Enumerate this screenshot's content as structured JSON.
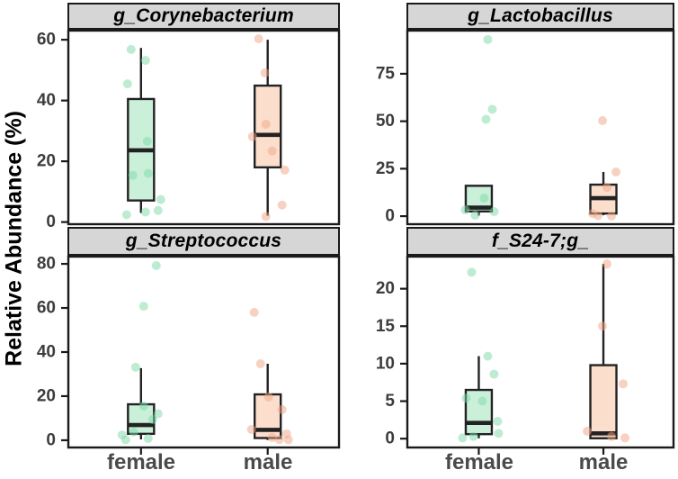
{
  "figure": {
    "ylabel": "Relative Abundance (%)",
    "x_categories": [
      "female",
      "male"
    ],
    "colors": {
      "female_fill": "#cbf0da",
      "female_point": "#7ed9a7",
      "male_fill": "#fcdecd",
      "male_point": "#f0a585",
      "box_stroke": "#222222",
      "panel_border": "#1a1a1a",
      "strip_bg": "#d6d6d6",
      "tick_label": "#3d3d3d",
      "axis_label": "#4a4a4a"
    }
  },
  "chart_data": [
    {
      "type": "boxplot",
      "title": "g_Corynebacterium",
      "categories": [
        "female",
        "male"
      ],
      "yticks": [
        0,
        20,
        40,
        60
      ],
      "ylim": [
        -1,
        63.3
      ],
      "grid": false,
      "series": [
        {
          "name": "female",
          "whisker_low": 3,
          "q1": 7.1,
          "median": 23.6,
          "q3": 40.5,
          "whisker_high": 57.3,
          "points": [
            [
              56.8,
              -11
            ],
            [
              53.2,
              5
            ],
            [
              45.5,
              -15
            ],
            [
              26.6,
              7
            ],
            [
              16,
              8
            ],
            [
              15.4,
              -9
            ],
            [
              7.4,
              22
            ],
            [
              3.8,
              19
            ],
            [
              3.3,
              5
            ],
            [
              2.4,
              -16
            ]
          ]
        },
        {
          "name": "male",
          "whisker_low": 2.1,
          "q1": 18,
          "median": 28.7,
          "q3": 44.9,
          "whisker_high": 60,
          "points": [
            [
              60.3,
              -10
            ],
            [
              49.1,
              -3
            ],
            [
              32.2,
              -2
            ],
            [
              28.1,
              -17
            ],
            [
              23.4,
              5
            ],
            [
              17.1,
              19
            ],
            [
              5.6,
              16
            ],
            [
              1.8,
              -2
            ]
          ]
        }
      ]
    },
    {
      "type": "boxplot",
      "title": "g_Lactobacillus",
      "categories": [
        "female",
        "male"
      ],
      "yticks": [
        0,
        25,
        50,
        75
      ],
      "ylim": [
        -4.7,
        98.2
      ],
      "grid": false,
      "series": [
        {
          "name": "female",
          "whisker_low": 0.3,
          "q1": 2.5,
          "median": 4.5,
          "q3": 16,
          "whisker_high": 16,
          "points": [
            [
              93,
              10
            ],
            [
              56.3,
              15
            ],
            [
              51,
              8
            ],
            [
              9.5,
              6
            ],
            [
              3.3,
              -15
            ],
            [
              2.4,
              17
            ],
            [
              0.5,
              -4
            ]
          ]
        },
        {
          "name": "male",
          "whisker_low": 0.5,
          "q1": 1.4,
          "median": 9.5,
          "q3": 16.6,
          "whisker_high": 23.3,
          "points": [
            [
              50.3,
              -1
            ],
            [
              23.3,
              14
            ],
            [
              15.2,
              4
            ],
            [
              1.4,
              -12
            ],
            [
              0.3,
              -6
            ],
            [
              0.1,
              9
            ]
          ]
        }
      ]
    },
    {
      "type": "boxplot",
      "title": "g_Streptococcus",
      "categories": [
        "female",
        "male"
      ],
      "yticks": [
        0,
        20,
        40,
        60,
        80
      ],
      "ylim": [
        -3.7,
        83.7
      ],
      "grid": false,
      "series": [
        {
          "name": "female",
          "whisker_low": 0.4,
          "q1": 2.9,
          "median": 6.9,
          "q3": 16.3,
          "whisker_high": 32.7,
          "points": [
            [
              79.2,
              17
            ],
            [
              60.8,
              3
            ],
            [
              33.1,
              -6
            ],
            [
              15.5,
              3
            ],
            [
              12,
              19
            ],
            [
              9.4,
              13
            ],
            [
              3.7,
              -8
            ],
            [
              2.4,
              -21
            ],
            [
              0.8,
              8
            ],
            [
              0.2,
              -17
            ]
          ]
        },
        {
          "name": "male",
          "whisker_low": 0.1,
          "q1": 1,
          "median": 4.7,
          "q3": 20.8,
          "whisker_high": 34.7,
          "points": [
            [
              58,
              -15
            ],
            [
              34.7,
              -8
            ],
            [
              19.6,
              1
            ],
            [
              13.9,
              16
            ],
            [
              4.9,
              -18
            ],
            [
              2.9,
              21
            ],
            [
              1.2,
              5
            ],
            [
              0.3,
              13
            ],
            [
              0.2,
              23
            ]
          ]
        }
      ]
    },
    {
      "type": "boxplot",
      "title": "f_S24-7;g_",
      "categories": [
        "female",
        "male"
      ],
      "yticks": [
        0,
        5,
        10,
        15,
        20
      ],
      "ylim": [
        -1.3,
        24.4
      ],
      "grid": false,
      "series": [
        {
          "name": "female",
          "whisker_low": 0.05,
          "q1": 0.6,
          "median": 2.1,
          "q3": 6.5,
          "whisker_high": 11,
          "points": [
            [
              22.2,
              -8
            ],
            [
              11,
              10
            ],
            [
              8.6,
              17
            ],
            [
              5.4,
              -14
            ],
            [
              5,
              4
            ],
            [
              2.3,
              21
            ],
            [
              0.7,
              22
            ],
            [
              0.3,
              -6
            ],
            [
              0.1,
              -18
            ]
          ]
        },
        {
          "name": "male",
          "whisker_low": 0,
          "q1": 0.05,
          "median": 0.7,
          "q3": 9.8,
          "whisker_high": 23.3,
          "points": [
            [
              23.3,
              4
            ],
            [
              15,
              -1
            ],
            [
              7.3,
              22
            ],
            [
              1,
              -18
            ],
            [
              0.3,
              9
            ],
            [
              0.1,
              24
            ]
          ]
        }
      ]
    }
  ]
}
